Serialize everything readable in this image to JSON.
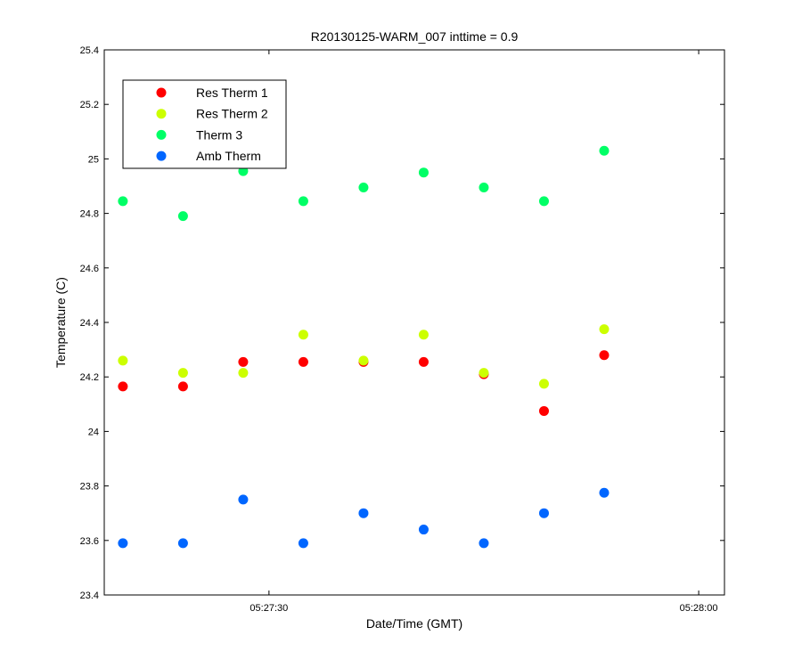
{
  "chart_data": {
    "type": "scatter",
    "title": "R20130125-WARM_007 inttime = 0.9",
    "xlabel": "Date/Time (GMT)",
    "ylabel": "Temperature (C)",
    "x_ticks": [
      "05:27:30",
      "05:28:00"
    ],
    "x_tick_seconds": [
      30,
      60
    ],
    "xlim_seconds": [
      18.5,
      61.8
    ],
    "ylim": [
      23.4,
      25.4
    ],
    "y_ticks": [
      "23.4",
      "23.6",
      "23.8",
      "24",
      "24.2",
      "24.4",
      "24.6",
      "24.8",
      "25",
      "25.2",
      "25.4"
    ],
    "x": [
      "05:27:19.8",
      "05:27:24.0",
      "05:27:28.2",
      "05:27:32.4",
      "05:27:36.6",
      "05:27:40.8",
      "05:27:45.0",
      "05:27:49.2",
      "05:27:53.4"
    ],
    "x_seconds": [
      19.8,
      24.0,
      28.2,
      32.4,
      36.6,
      40.8,
      45.0,
      49.2,
      53.4
    ],
    "grid": false,
    "legend_position": "top-left",
    "series": [
      {
        "name": "Res Therm 1",
        "color": "#ff0000",
        "values": [
          24.165,
          24.165,
          24.255,
          24.255,
          24.255,
          24.255,
          24.21,
          24.075,
          24.28
        ]
      },
      {
        "name": "Res Therm 2",
        "color": "#ccff00",
        "values": [
          24.26,
          24.215,
          24.215,
          24.355,
          24.26,
          24.355,
          24.215,
          24.175,
          24.375
        ]
      },
      {
        "name": "Therm 3",
        "color": "#00ff66",
        "values": [
          24.845,
          24.79,
          24.955,
          24.845,
          24.895,
          24.95,
          24.895,
          24.845,
          25.03
        ]
      },
      {
        "name": "Amb Therm",
        "color": "#0066ff",
        "values": [
          23.59,
          23.59,
          23.75,
          23.59,
          23.7,
          23.64,
          23.59,
          23.7,
          23.775
        ]
      }
    ]
  }
}
